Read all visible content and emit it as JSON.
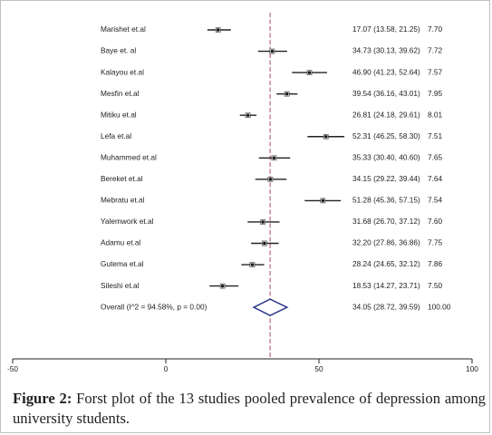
{
  "chart_data": {
    "type": "forest",
    "title": "",
    "xlabel": "",
    "ylabel": "",
    "xlim": [
      -50,
      100
    ],
    "x_ticks": [
      -50,
      0,
      50,
      100
    ],
    "x_tick_labels": [
      "-50",
      "0",
      "50",
      "100"
    ],
    "reference_line": 34.05,
    "studies": [
      {
        "label": "Marishet et.al",
        "estimate": 17.07,
        "ci_low": 13.58,
        "ci_high": 21.25,
        "ci_text": "17.07 (13.58, 21.25)",
        "weight": "7.70"
      },
      {
        "label": "Baye et. al",
        "estimate": 34.73,
        "ci_low": 30.13,
        "ci_high": 39.62,
        "ci_text": "34.73 (30.13, 39.62)",
        "weight": "7.72"
      },
      {
        "label": "Kalayou et.al",
        "estimate": 46.9,
        "ci_low": 41.23,
        "ci_high": 52.64,
        "ci_text": "46.90 (41.23, 52.64)",
        "weight": "7.57"
      },
      {
        "label": "Mesfin et.al",
        "estimate": 39.54,
        "ci_low": 36.16,
        "ci_high": 43.01,
        "ci_text": "39.54 (36.16, 43.01)",
        "weight": "7.95"
      },
      {
        "label": "Mitiku et.al",
        "estimate": 26.81,
        "ci_low": 24.18,
        "ci_high": 29.61,
        "ci_text": "26.81 (24.18, 29.61)",
        "weight": "8.01"
      },
      {
        "label": "Lefa et.al",
        "estimate": 52.31,
        "ci_low": 46.25,
        "ci_high": 58.3,
        "ci_text": "52.31 (46.25, 58.30)",
        "weight": "7.51"
      },
      {
        "label": "Muhammed et.al",
        "estimate": 35.33,
        "ci_low": 30.4,
        "ci_high": 40.6,
        "ci_text": "35.33 (30.40, 40.60)",
        "weight": "7.65"
      },
      {
        "label": "Bereket et.al",
        "estimate": 34.15,
        "ci_low": 29.22,
        "ci_high": 39.44,
        "ci_text": "34.15 (29.22, 39.44)",
        "weight": "7.64"
      },
      {
        "label": "Mebratu et.al",
        "estimate": 51.28,
        "ci_low": 45.36,
        "ci_high": 57.15,
        "ci_text": "51.28 (45.36, 57.15)",
        "weight": "7.54"
      },
      {
        "label": "Yalemwork et.al",
        "estimate": 31.68,
        "ci_low": 26.7,
        "ci_high": 37.12,
        "ci_text": "31.68 (26.70, 37.12)",
        "weight": "7.60"
      },
      {
        "label": "Adamu et.al",
        "estimate": 32.2,
        "ci_low": 27.86,
        "ci_high": 36.86,
        "ci_text": "32.20 (27.86, 36.86)",
        "weight": "7.75"
      },
      {
        "label": "Gutema et.al",
        "estimate": 28.24,
        "ci_low": 24.65,
        "ci_high": 32.12,
        "ci_text": "28.24 (24.65, 32.12)",
        "weight": "7.86"
      },
      {
        "label": "Sileshi et.al",
        "estimate": 18.53,
        "ci_low": 14.27,
        "ci_high": 23.71,
        "ci_text": "18.53 (14.27, 23.71)",
        "weight": "7.50"
      }
    ],
    "overall": {
      "label": "Overall  (I^2 = 94.58%, p = 0.00)",
      "estimate": 34.05,
      "ci_low": 28.72,
      "ci_high": 39.59,
      "ci_text": "34.05 (28.72, 39.59)",
      "weight": "100.00"
    },
    "colors": {
      "reference_line": "#b04a5a",
      "diamond": "#1f2a80",
      "ink": "#222222"
    }
  },
  "caption": {
    "label": "Figure 2:",
    "text": " Forst plot of the 13 studies pooled prevalence of depression among university students."
  }
}
